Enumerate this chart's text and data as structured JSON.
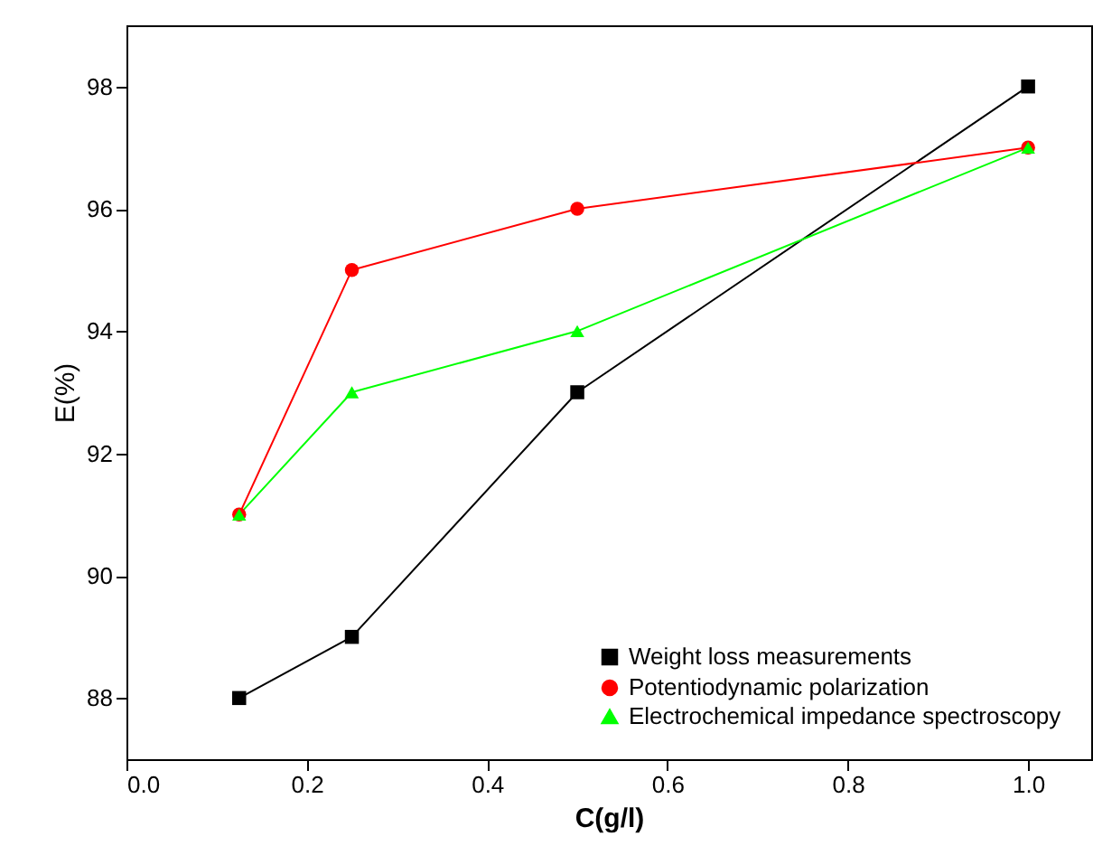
{
  "chart_data": {
    "type": "line",
    "xlabel": "C(g/l)",
    "ylabel": "E(%)",
    "x": [
      0.125,
      0.25,
      0.5,
      1.0
    ],
    "series": [
      {
        "name": "Weight loss measurements",
        "color": "#000000",
        "marker": "square",
        "values": [
          88,
          89,
          93,
          98
        ]
      },
      {
        "name": "Potentiodynamic polarization",
        "color": "#ff0000",
        "marker": "circle",
        "values": [
          91,
          95,
          96,
          97
        ]
      },
      {
        "name": "Electrochemical impedance spectroscopy",
        "color": "#00ff00",
        "marker": "triangle",
        "values": [
          91,
          93,
          94,
          97
        ]
      }
    ],
    "xlim": [
      0,
      1.07
    ],
    "xticks": [
      {
        "value": 0,
        "label": "0.0"
      },
      {
        "value": 0.2,
        "label": "0.2"
      },
      {
        "value": 0.4,
        "label": "0.4"
      },
      {
        "value": 0.6,
        "label": "0.6"
      },
      {
        "value": 0.8,
        "label": "0.8"
      },
      {
        "value": 1,
        "label": "1.0"
      }
    ],
    "ylim": [
      87,
      99
    ],
    "yticks": [
      88,
      90,
      92,
      94,
      96,
      98
    ],
    "grid": false,
    "legend": "bottom right",
    "line_style": "solid"
  }
}
